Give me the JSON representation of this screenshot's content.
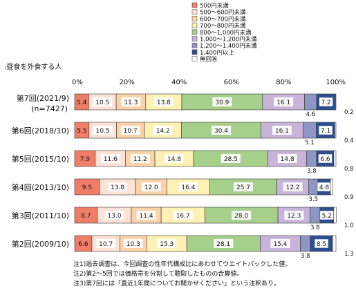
{
  "chart_data": {
    "type": "bar",
    "orientation": "horizontal",
    "stacked": true,
    "subtitle": ":昼食を外食する人",
    "xlim": [
      0,
      100
    ],
    "x_ticks": [
      "0%",
      "20%",
      "40%",
      "60%",
      "80%",
      "100%"
    ],
    "grid": false,
    "legend_position": "top-right",
    "categories": [
      {
        "label": "第7回(2021/9)",
        "sublabel": "(n=7427)"
      },
      {
        "label": "第6回(2018/10)",
        "sublabel": ""
      },
      {
        "label": "第5回(2015/10)",
        "sublabel": ""
      },
      {
        "label": "第4回(2013/10)",
        "sublabel": ""
      },
      {
        "label": "第3回(2011/10)",
        "sublabel": ""
      },
      {
        "label": "第2回(2009/10)",
        "sublabel": ""
      }
    ],
    "series": [
      {
        "name": "500円未満",
        "color": "#f07d68",
        "values": [
          5.4,
          5.5,
          7.9,
          9.5,
          8.7,
          6.6
        ],
        "labels": [
          "5.4",
          "5.5",
          "7.9",
          "9.5",
          "8.7",
          "6.6"
        ]
      },
      {
        "name": "500～600円未満",
        "color": "#fde2d6",
        "values": [
          10.5,
          10.5,
          11.6,
          13.8,
          13.0,
          10.7
        ],
        "labels": [
          "10.5",
          "10.5",
          "11.6",
          "13.8",
          "13.0",
          "10.7"
        ]
      },
      {
        "name": "600～700円未満",
        "color": "#fbd3a8",
        "values": [
          11.3,
          10.7,
          11.2,
          12.0,
          11.4,
          10.3
        ],
        "labels": [
          "11.3",
          "10.7",
          "11.2",
          "12.0",
          "11.4",
          "10.3"
        ]
      },
      {
        "name": "700～800円未満",
        "color": "#fdf1b5",
        "values": [
          13.8,
          14.2,
          14.8,
          16.4,
          16.7,
          15.3
        ],
        "labels": [
          "13.8",
          "14.2",
          "14.8",
          "16.4",
          "16.7",
          "15.3"
        ]
      },
      {
        "name": "800～1,000円未満",
        "color": "#a8d08d",
        "values": [
          30.9,
          30.4,
          28.5,
          25.7,
          28.0,
          28.1
        ],
        "labels": [
          "30.9",
          "30.4",
          "28.5",
          "25.7",
          "28.0",
          "28.1"
        ]
      },
      {
        "name": "1,000～1,200円未満",
        "color": "#c8b4d8",
        "values": [
          16.1,
          16.1,
          14.8,
          12.2,
          12.3,
          15.4
        ],
        "labels": [
          "16.1",
          "16.1",
          "14.8",
          "12.2",
          "12.3",
          "15.4"
        ]
      },
      {
        "name": "1,200～1,400円未満",
        "color": "#8f95c4",
        "values": [
          4.6,
          5.1,
          3.8,
          3.5,
          3.8,
          3.8
        ],
        "labels": [
          "4.6",
          "5.1",
          "3.8",
          "3.5",
          "3.8",
          "3.8"
        ]
      },
      {
        "name": "1,400円以上",
        "color": "#2e4e8f",
        "values": [
          7.2,
          7.1,
          6.6,
          4.8,
          5.2,
          8.5
        ],
        "labels": [
          "7.2",
          "7.1",
          "6.6",
          "4.8",
          "5.2",
          "8.5"
        ]
      },
      {
        "name": "無回答",
        "color": "#ffffff",
        "values": [
          0.2,
          0.4,
          0.8,
          0.9,
          1.0,
          1.3
        ],
        "labels": [
          "0.2",
          "0.4",
          "0.8",
          "0.9",
          "1.0",
          "1.3"
        ]
      }
    ],
    "notes": [
      "注1)過去調査は、今回調査の性年代構成比にあわせてウエイトバックした値。",
      "注2)第2～5回では価格帯を分割して聴取したものの合算値。",
      "注3)第7回には「直近1年間についてお聞かせください」という注釈あり。"
    ]
  }
}
